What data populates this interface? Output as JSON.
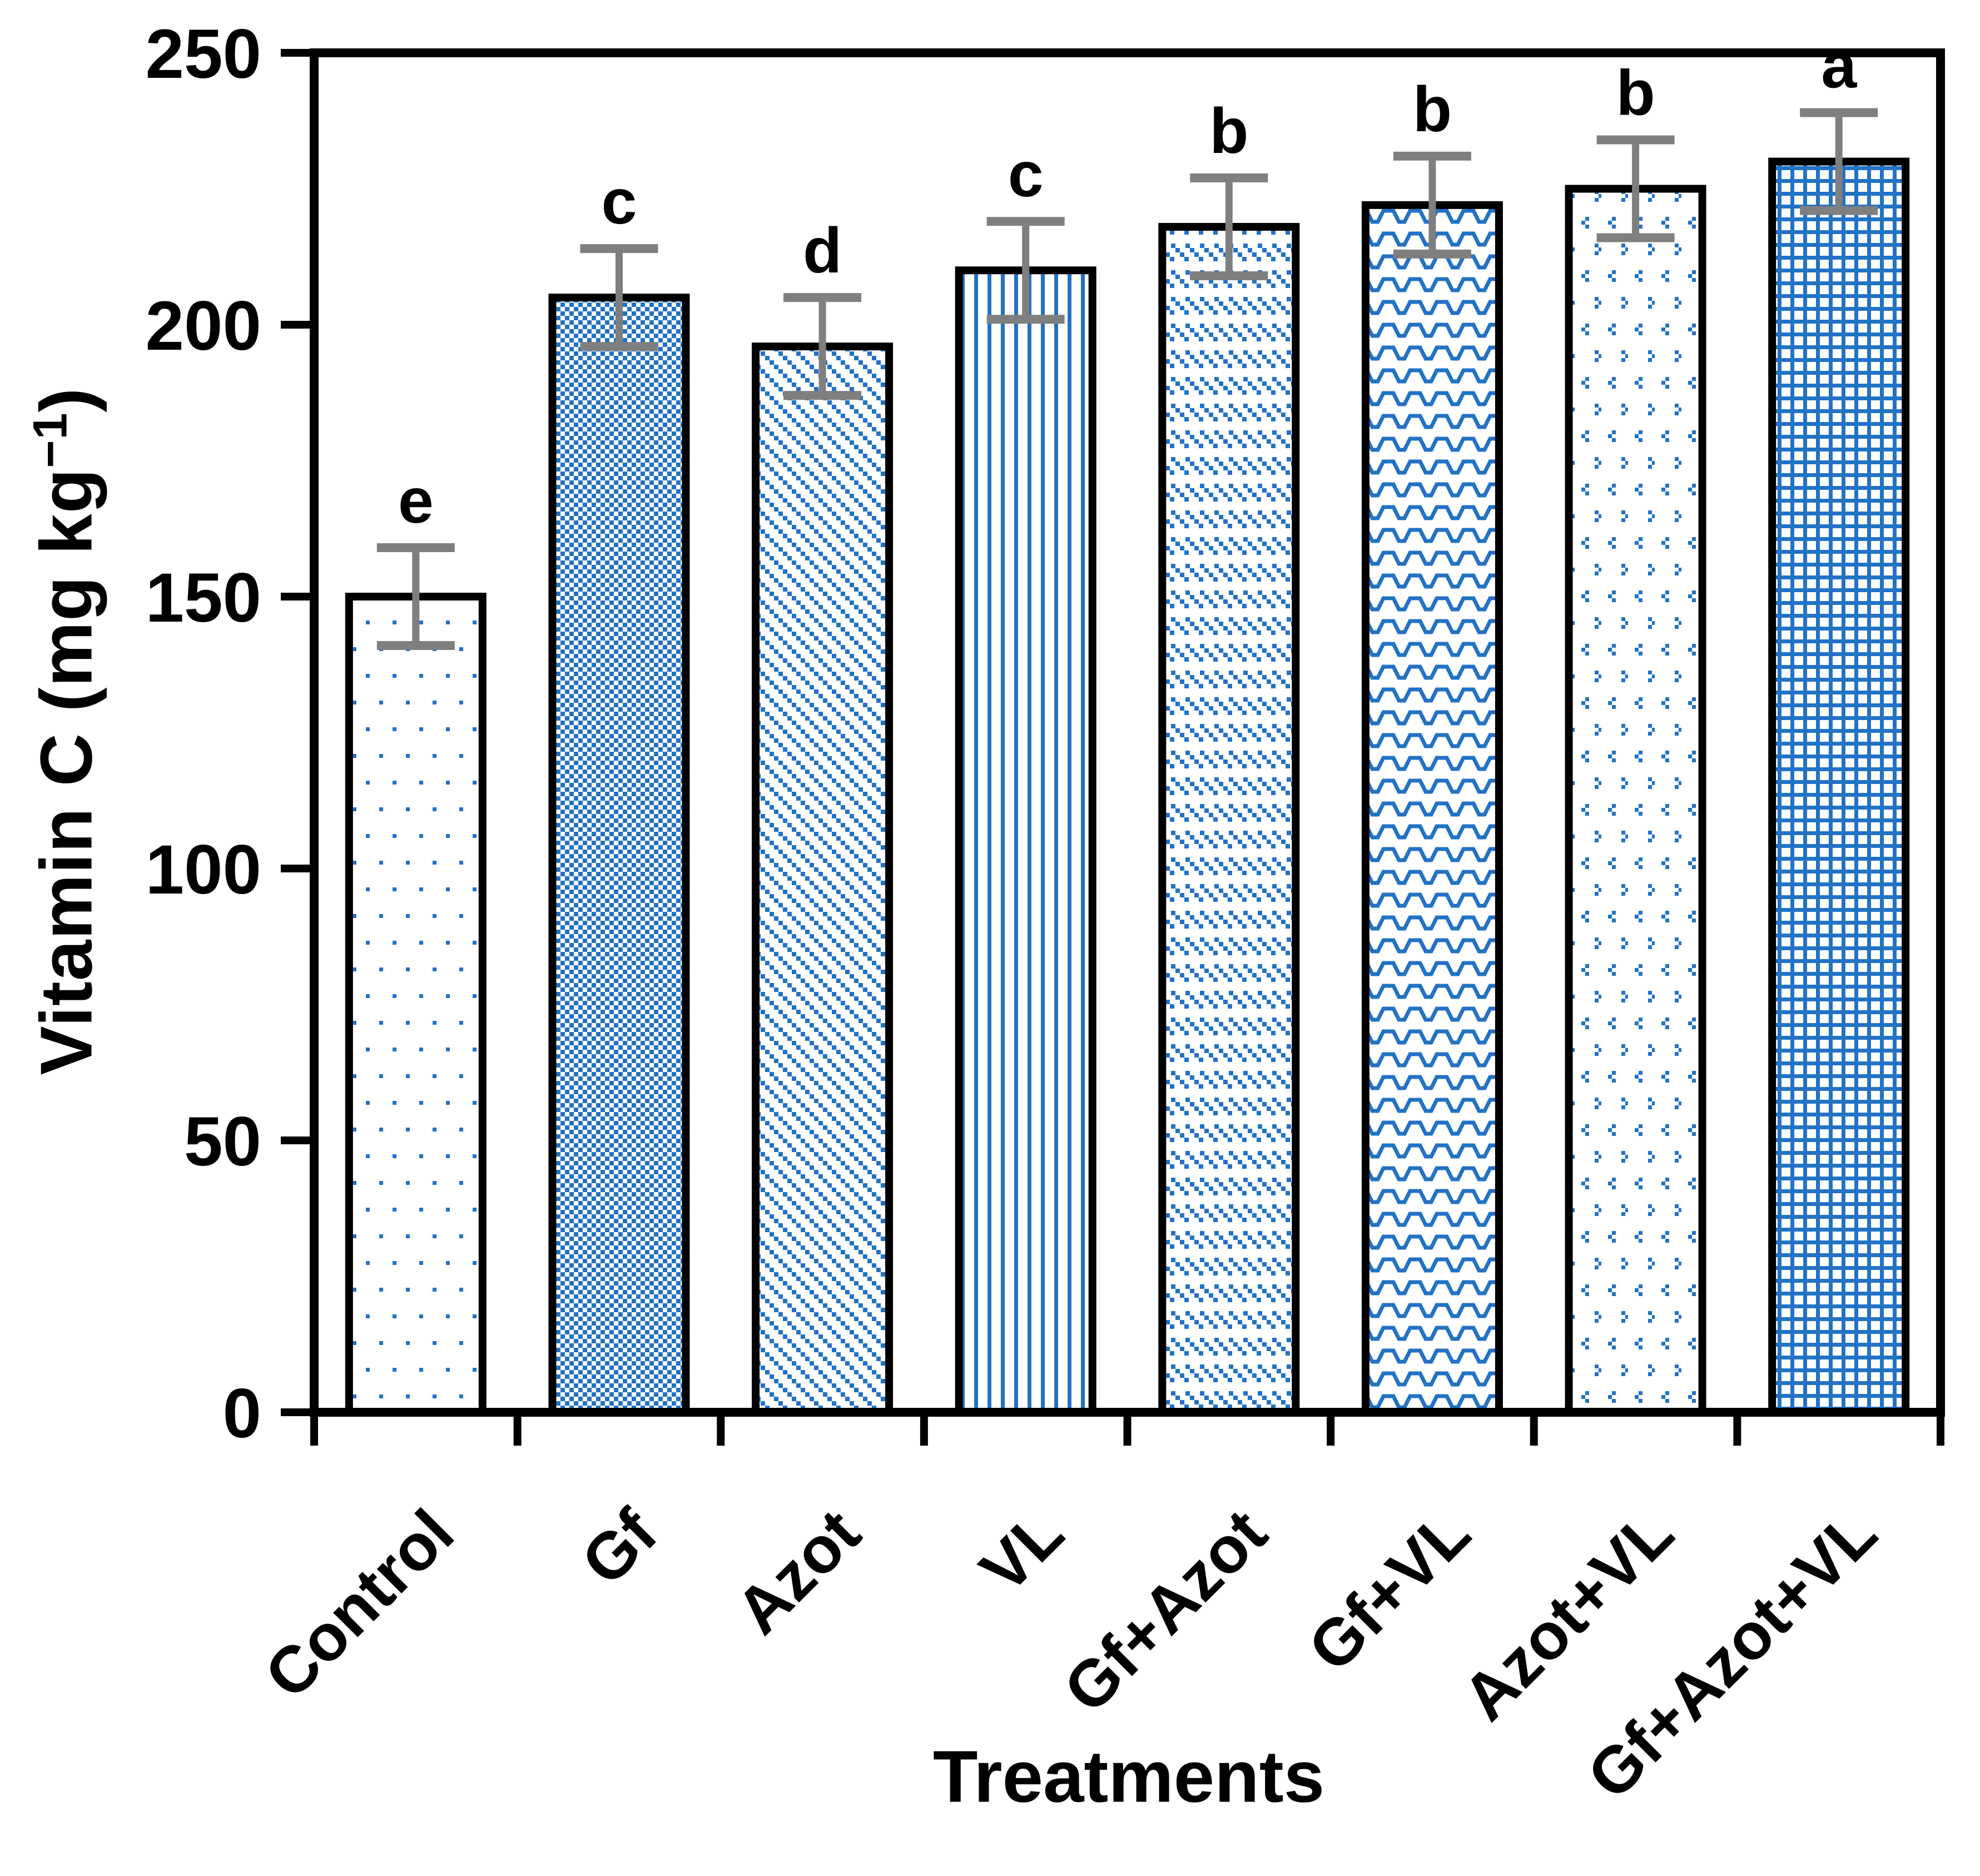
{
  "chart_data": {
    "type": "bar",
    "title": "",
    "xlabel": "Treatments",
    "ylabel": "Vitamin C (mg kg−1)",
    "ylabel_parts": {
      "prefix": "Vitamin C (mg kg",
      "sup": "−1",
      "suffix": ")"
    },
    "categories": [
      "Control",
      "Gf",
      "Azot",
      "VL",
      "Gf+Azot",
      "Gf+VL",
      "Azot+VL",
      "Gf+Azot+VL"
    ],
    "values": [
      150,
      205,
      196,
      210,
      218,
      222,
      225,
      230
    ],
    "errors": [
      9,
      9,
      9,
      9,
      9,
      9,
      9,
      9
    ],
    "sig_letters": [
      "e",
      "c",
      "d",
      "c",
      "b",
      "b",
      "b",
      "a"
    ],
    "patterns": [
      "dots",
      "checker",
      "diag-dash",
      "vlines",
      "dash-rows",
      "zigzag",
      "dotted-diamond",
      "grid"
    ],
    "ylim": [
      0,
      250
    ],
    "yticks": [
      0,
      50,
      100,
      150,
      200,
      250
    ],
    "grid": false,
    "legend": "none"
  },
  "style": {
    "pattern_blue": "#2272C5",
    "bar_border": "#000000",
    "error_bar_color": "#7F7F7F",
    "axis_color": "#000000",
    "text_color": "#000000",
    "background": "#FFFFFF"
  }
}
